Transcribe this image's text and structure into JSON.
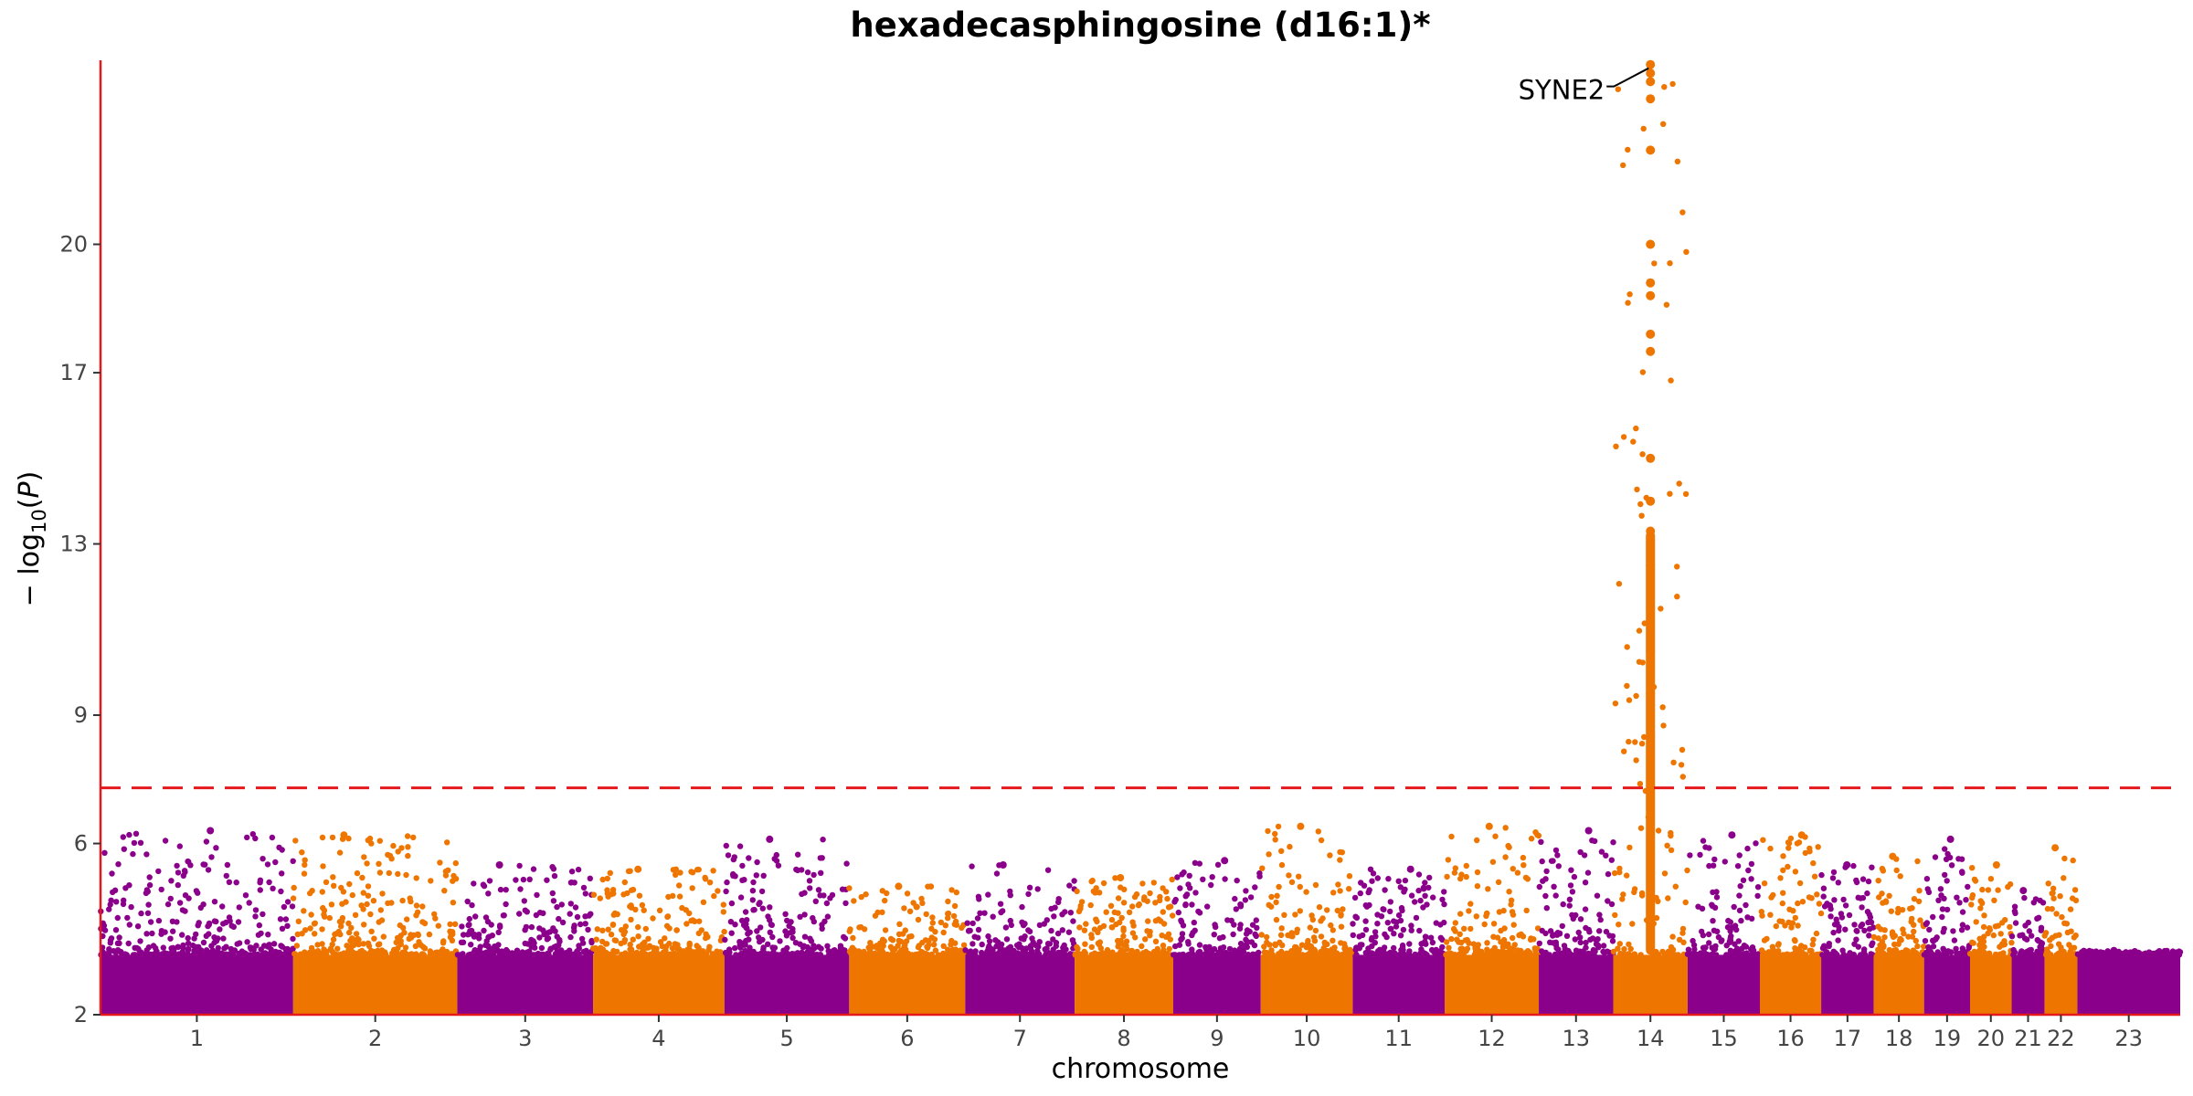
{
  "chart_data": {
    "type": "scatter",
    "title": "hexadecasphingosine (d16:1)*",
    "xlabel": "chromosome",
    "ylabel": "-log10(P)",
    "ylim": [
      2,
      24.3
    ],
    "y_ticks": [
      2,
      6,
      9,
      13,
      17,
      20
    ],
    "grid": false,
    "significance_line": 7.3,
    "colors": {
      "odd_chromosome": "#8B008B",
      "even_chromosome": "#EE7600",
      "axis": "#E4191C",
      "threshold": "#E4191C"
    },
    "chromosomes": [
      {
        "label": "1",
        "start": 0,
        "end": 0.88,
        "max": 6.3
      },
      {
        "label": "2",
        "start": 0.88,
        "end": 1.63,
        "max": 6.2
      },
      {
        "label": "3",
        "start": 1.63,
        "end": 2.25,
        "max": 5.5
      },
      {
        "label": "4",
        "start": 2.25,
        "end": 2.85,
        "max": 5.4
      },
      {
        "label": "5",
        "start": 2.85,
        "end": 3.42,
        "max": 6.1
      },
      {
        "label": "6",
        "start": 3.42,
        "end": 3.95,
        "max": 5.0
      },
      {
        "label": "7",
        "start": 3.95,
        "end": 4.45,
        "max": 5.5
      },
      {
        "label": "8",
        "start": 4.45,
        "end": 4.9,
        "max": 5.2
      },
      {
        "label": "9",
        "start": 4.9,
        "end": 5.3,
        "max": 5.6
      },
      {
        "label": "10",
        "start": 5.3,
        "end": 5.72,
        "max": 6.4
      },
      {
        "label": "11",
        "start": 5.72,
        "end": 6.14,
        "max": 5.4
      },
      {
        "label": "12",
        "start": 6.14,
        "end": 6.57,
        "max": 6.4
      },
      {
        "label": "13",
        "start": 6.57,
        "end": 6.91,
        "max": 6.3
      },
      {
        "label": "14",
        "start": 6.91,
        "end": 7.25,
        "max": 24.2
      },
      {
        "label": "15",
        "start": 7.25,
        "end": 7.58,
        "max": 6.2
      },
      {
        "label": "16",
        "start": 7.58,
        "end": 7.86,
        "max": 6.2
      },
      {
        "label": "17",
        "start": 7.86,
        "end": 8.1,
        "max": 5.5
      },
      {
        "label": "18",
        "start": 8.1,
        "end": 8.33,
        "max": 5.7
      },
      {
        "label": "19",
        "start": 8.33,
        "end": 8.54,
        "max": 6.1
      },
      {
        "label": "20",
        "start": 8.54,
        "end": 8.73,
        "max": 5.5
      },
      {
        "label": "21",
        "start": 8.73,
        "end": 8.88,
        "max": 4.9
      },
      {
        "label": "22",
        "start": 8.88,
        "end": 9.03,
        "max": 5.9
      },
      {
        "label": "23",
        "start": 9.03,
        "end": 9.5,
        "max": 3.5
      }
    ],
    "peak_hits": [
      {
        "chr": "14",
        "p": 24.2
      },
      {
        "chr": "14",
        "p": 24.0
      },
      {
        "chr": "14",
        "p": 23.8
      },
      {
        "chr": "14",
        "p": 23.4
      },
      {
        "chr": "14",
        "p": 22.2
      },
      {
        "chr": "14",
        "p": 20.0
      },
      {
        "chr": "14",
        "p": 19.1
      },
      {
        "chr": "14",
        "p": 18.8
      },
      {
        "chr": "14",
        "p": 17.9
      },
      {
        "chr": "14",
        "p": 17.5
      },
      {
        "chr": "14",
        "p": 15.0
      },
      {
        "chr": "14",
        "p": 14.0
      },
      {
        "chr": "14",
        "p": 13.3
      },
      {
        "chr": "14",
        "p": 12.5
      },
      {
        "chr": "14",
        "p": 11.5
      },
      {
        "chr": "14",
        "p": 10.5
      },
      {
        "chr": "14",
        "p": 9.5
      },
      {
        "chr": "14",
        "p": 8.5
      }
    ],
    "annotations": [
      {
        "text": "SYNE2",
        "chr": "14",
        "p": 24.2
      }
    ]
  }
}
